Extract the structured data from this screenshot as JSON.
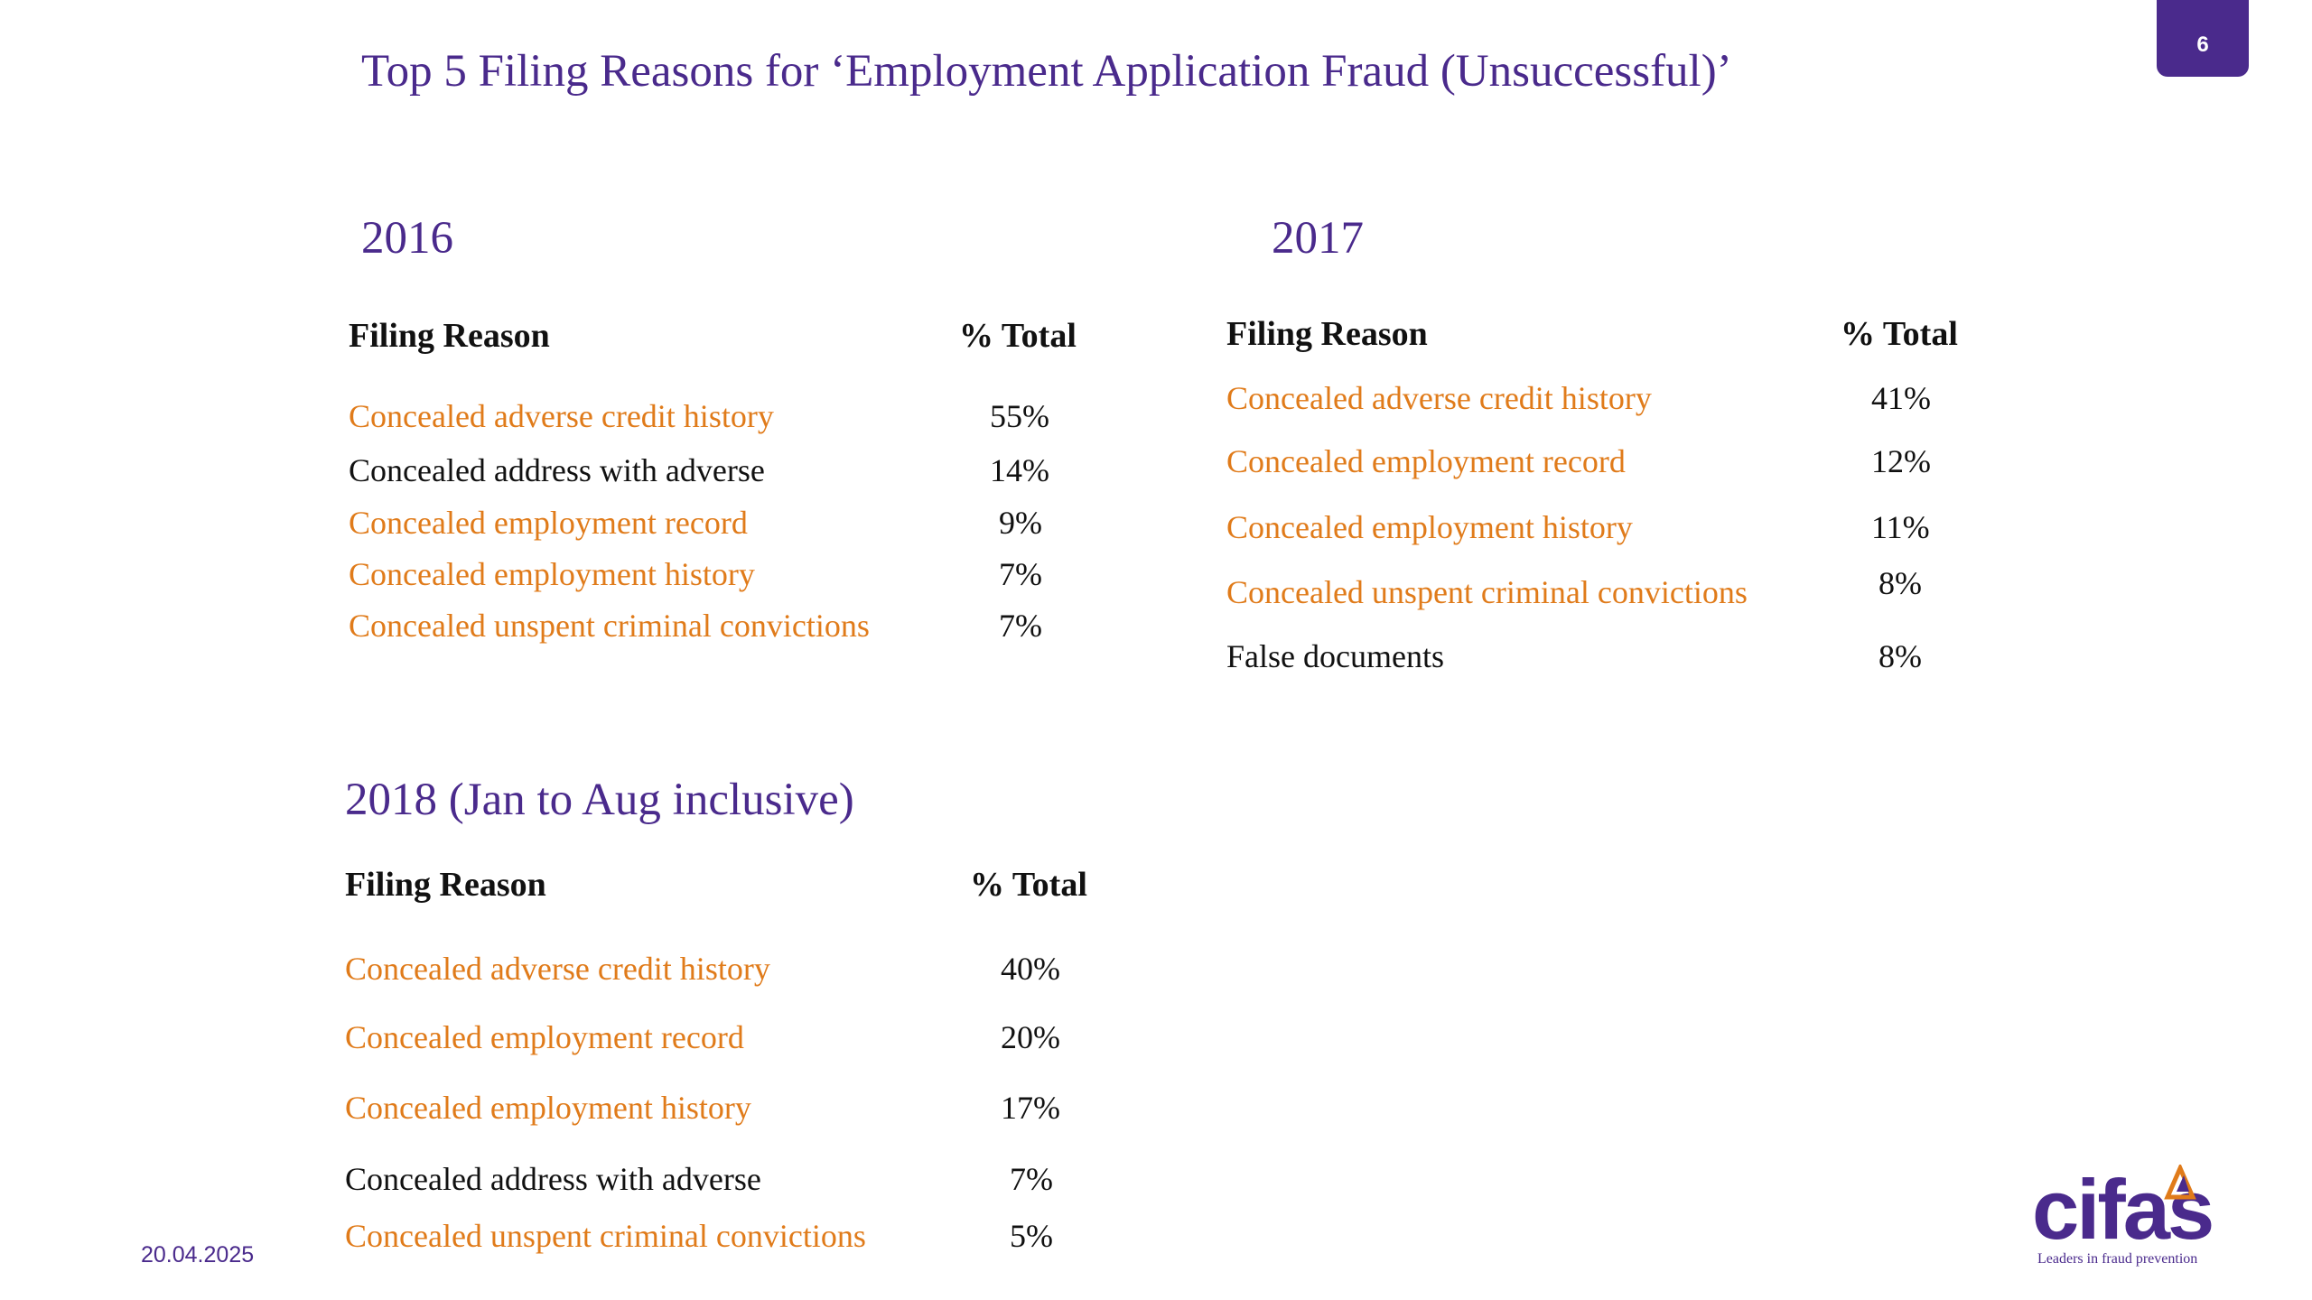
{
  "title": "Top 5 Filing Reasons for ‘Employment Application Fraud (Unsuccessful)’",
  "page_number": "6",
  "footer_date": "20.04.2025",
  "logo": {
    "word": "cifas",
    "tagline": "Leaders in fraud prevention"
  },
  "colors": {
    "accent": "#4a2a8c",
    "highlight": "#e07b1a",
    "text": "#111111"
  },
  "tables": [
    {
      "year": "2016",
      "header_reason": "Filing Reason",
      "header_pct": "% Total",
      "rows": [
        {
          "reason": "Concealed adverse credit history",
          "pct": "55%",
          "highlight": true
        },
        {
          "reason": "Concealed address with adverse",
          "pct": "14%",
          "highlight": false
        },
        {
          "reason": "Concealed employment record",
          "pct": "9%",
          "highlight": true
        },
        {
          "reason": "Concealed employment history",
          "pct": "7%",
          "highlight": true
        },
        {
          "reason": "Concealed unspent criminal convictions",
          "pct": "7%",
          "highlight": true
        }
      ]
    },
    {
      "year": "2017",
      "header_reason": "Filing Reason",
      "header_pct": "% Total",
      "rows": [
        {
          "reason": "Concealed adverse credit history",
          "pct": "41%",
          "highlight": true
        },
        {
          "reason": "Concealed employment record",
          "pct": "12%",
          "highlight": true
        },
        {
          "reason": "Concealed employment history",
          "pct": "11%",
          "highlight": true
        },
        {
          "reason": "Concealed unspent criminal convictions",
          "pct": "8%",
          "highlight": true
        },
        {
          "reason": "False documents",
          "pct": "8%",
          "highlight": false
        }
      ]
    },
    {
      "year": "2018 (Jan to Aug inclusive)",
      "header_reason": "Filing Reason",
      "header_pct": "% Total",
      "rows": [
        {
          "reason": "Concealed adverse credit history",
          "pct": "40%",
          "highlight": true
        },
        {
          "reason": "Concealed employment record",
          "pct": "20%",
          "highlight": true
        },
        {
          "reason": "Concealed employment history",
          "pct": "17%",
          "highlight": true
        },
        {
          "reason": "Concealed address with adverse",
          "pct": "7%",
          "highlight": false
        },
        {
          "reason": "Concealed unspent criminal convictions",
          "pct": "5%",
          "highlight": true
        }
      ]
    }
  ]
}
